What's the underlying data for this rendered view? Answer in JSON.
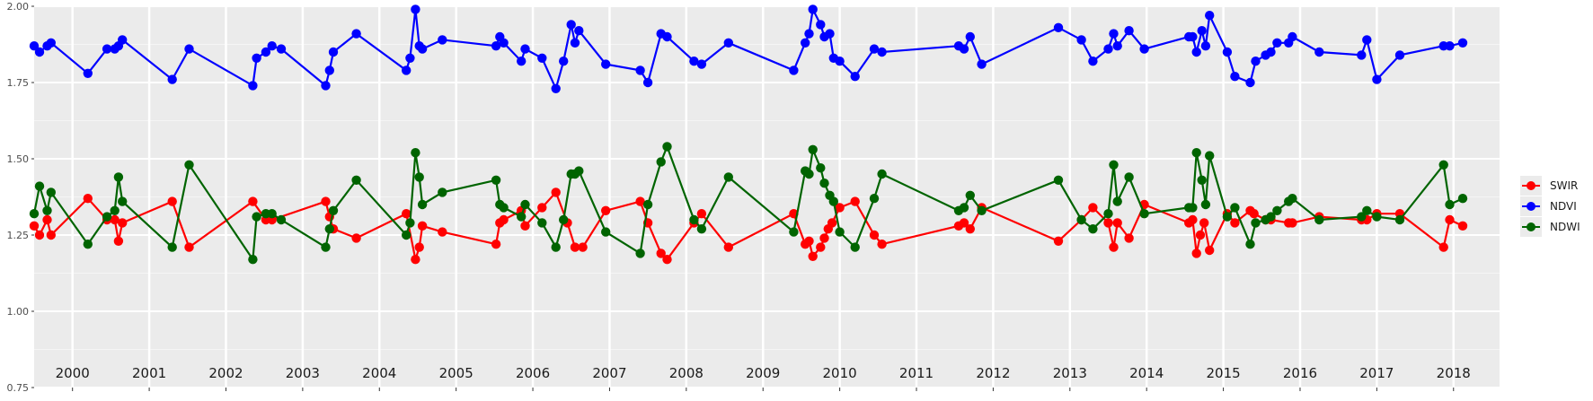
{
  "chart_data": {
    "type": "line",
    "title": "",
    "xlabel": "",
    "ylabel": "",
    "ylim": [
      0.75,
      2.0
    ],
    "xlim": [
      1999.5,
      2018.6
    ],
    "grid": true,
    "legend_position": "right",
    "y_ticks": [
      "0.75",
      "1.00",
      "1.25",
      "1.50",
      "1.75",
      "2.00"
    ],
    "year_labels": [
      "2000",
      "2001",
      "2002",
      "2003",
      "2004",
      "2005",
      "2006",
      "2007",
      "2008",
      "2009",
      "2010",
      "2011",
      "2012",
      "2013",
      "2014",
      "2015",
      "2016",
      "2017",
      "2018"
    ],
    "legend": [
      {
        "name": "SWIR",
        "color": "#ff0000"
      },
      {
        "name": "NDVI",
        "color": "#0000ff"
      },
      {
        "name": "NDWI",
        "color": "#006400"
      }
    ],
    "series": [
      {
        "name": "SWIR",
        "color": "#ff0000",
        "points": [
          [
            1999.5,
            1.28
          ],
          [
            1999.57,
            1.25
          ],
          [
            1999.67,
            1.3
          ],
          [
            1999.72,
            1.25
          ],
          [
            2000.2,
            1.37
          ],
          [
            2000.45,
            1.3
          ],
          [
            2000.55,
            1.3
          ],
          [
            2000.6,
            1.23
          ],
          [
            2000.65,
            1.29
          ],
          [
            2001.3,
            1.36
          ],
          [
            2001.52,
            1.21
          ],
          [
            2002.35,
            1.36
          ],
          [
            2002.52,
            1.3
          ],
          [
            2002.6,
            1.3
          ],
          [
            2003.3,
            1.36
          ],
          [
            2003.35,
            1.31
          ],
          [
            2003.4,
            1.27
          ],
          [
            2003.7,
            1.24
          ],
          [
            2004.35,
            1.32
          ],
          [
            2004.47,
            1.17
          ],
          [
            2004.52,
            1.21
          ],
          [
            2004.56,
            1.28
          ],
          [
            2004.82,
            1.26
          ],
          [
            2005.52,
            1.22
          ],
          [
            2005.57,
            1.29
          ],
          [
            2005.62,
            1.3
          ],
          [
            2005.85,
            1.33
          ],
          [
            2005.9,
            1.28
          ],
          [
            2006.12,
            1.34
          ],
          [
            2006.3,
            1.39
          ],
          [
            2006.45,
            1.29
          ],
          [
            2006.55,
            1.21
          ],
          [
            2006.65,
            1.21
          ],
          [
            2006.95,
            1.33
          ],
          [
            2007.4,
            1.36
          ],
          [
            2007.5,
            1.29
          ],
          [
            2007.67,
            1.19
          ],
          [
            2007.75,
            1.17
          ],
          [
            2008.1,
            1.29
          ],
          [
            2008.2,
            1.32
          ],
          [
            2008.55,
            1.21
          ],
          [
            2009.4,
            1.32
          ],
          [
            2009.55,
            1.22
          ],
          [
            2009.6,
            1.23
          ],
          [
            2009.65,
            1.18
          ],
          [
            2009.75,
            1.21
          ],
          [
            2009.8,
            1.24
          ],
          [
            2009.85,
            1.27
          ],
          [
            2009.9,
            1.29
          ],
          [
            2010.0,
            1.34
          ],
          [
            2010.2,
            1.36
          ],
          [
            2010.45,
            1.25
          ],
          [
            2010.55,
            1.22
          ],
          [
            2011.55,
            1.28
          ],
          [
            2011.62,
            1.29
          ],
          [
            2011.7,
            1.27
          ],
          [
            2011.85,
            1.34
          ],
          [
            2012.85,
            1.23
          ],
          [
            2013.15,
            1.3
          ],
          [
            2013.3,
            1.34
          ],
          [
            2013.5,
            1.29
          ],
          [
            2013.57,
            1.21
          ],
          [
            2013.62,
            1.29
          ],
          [
            2013.77,
            1.24
          ],
          [
            2013.97,
            1.35
          ],
          [
            2014.55,
            1.29
          ],
          [
            2014.6,
            1.3
          ],
          [
            2014.65,
            1.19
          ],
          [
            2014.7,
            1.25
          ],
          [
            2014.75,
            1.29
          ],
          [
            2014.82,
            1.2
          ],
          [
            2015.05,
            1.32
          ],
          [
            2015.15,
            1.29
          ],
          [
            2015.35,
            1.33
          ],
          [
            2015.4,
            1.32
          ],
          [
            2015.55,
            1.3
          ],
          [
            2015.62,
            1.3
          ],
          [
            2015.85,
            1.29
          ],
          [
            2015.9,
            1.29
          ],
          [
            2016.25,
            1.31
          ],
          [
            2016.8,
            1.3
          ],
          [
            2016.87,
            1.3
          ],
          [
            2017.0,
            1.32
          ],
          [
            2017.3,
            1.32
          ],
          [
            2017.87,
            1.21
          ],
          [
            2017.95,
            1.3
          ],
          [
            2018.12,
            1.28
          ]
        ]
      },
      {
        "name": "NDVI",
        "color": "#0000ff",
        "points": [
          [
            1999.5,
            1.87
          ],
          [
            1999.57,
            1.85
          ],
          [
            1999.67,
            1.87
          ],
          [
            1999.72,
            1.88
          ],
          [
            2000.2,
            1.78
          ],
          [
            2000.45,
            1.86
          ],
          [
            2000.55,
            1.86
          ],
          [
            2000.6,
            1.87
          ],
          [
            2000.65,
            1.89
          ],
          [
            2001.3,
            1.76
          ],
          [
            2001.52,
            1.86
          ],
          [
            2002.35,
            1.74
          ],
          [
            2002.4,
            1.83
          ],
          [
            2002.52,
            1.85
          ],
          [
            2002.6,
            1.87
          ],
          [
            2002.72,
            1.86
          ],
          [
            2003.3,
            1.74
          ],
          [
            2003.35,
            1.79
          ],
          [
            2003.4,
            1.85
          ],
          [
            2003.7,
            1.91
          ],
          [
            2004.35,
            1.79
          ],
          [
            2004.4,
            1.83
          ],
          [
            2004.47,
            1.99
          ],
          [
            2004.52,
            1.87
          ],
          [
            2004.56,
            1.86
          ],
          [
            2004.82,
            1.89
          ],
          [
            2005.52,
            1.87
          ],
          [
            2005.57,
            1.9
          ],
          [
            2005.62,
            1.88
          ],
          [
            2005.85,
            1.82
          ],
          [
            2005.9,
            1.86
          ],
          [
            2006.12,
            1.83
          ],
          [
            2006.3,
            1.73
          ],
          [
            2006.4,
            1.82
          ],
          [
            2006.5,
            1.94
          ],
          [
            2006.55,
            1.88
          ],
          [
            2006.6,
            1.92
          ],
          [
            2006.95,
            1.81
          ],
          [
            2007.4,
            1.79
          ],
          [
            2007.5,
            1.75
          ],
          [
            2007.67,
            1.91
          ],
          [
            2007.75,
            1.9
          ],
          [
            2008.1,
            1.82
          ],
          [
            2008.2,
            1.81
          ],
          [
            2008.55,
            1.88
          ],
          [
            2009.4,
            1.79
          ],
          [
            2009.55,
            1.88
          ],
          [
            2009.6,
            1.91
          ],
          [
            2009.65,
            1.99
          ],
          [
            2009.75,
            1.94
          ],
          [
            2009.8,
            1.9
          ],
          [
            2009.87,
            1.91
          ],
          [
            2009.92,
            1.83
          ],
          [
            2010.0,
            1.82
          ],
          [
            2010.2,
            1.77
          ],
          [
            2010.45,
            1.86
          ],
          [
            2010.55,
            1.85
          ],
          [
            2011.55,
            1.87
          ],
          [
            2011.62,
            1.86
          ],
          [
            2011.7,
            1.9
          ],
          [
            2011.85,
            1.81
          ],
          [
            2012.85,
            1.93
          ],
          [
            2013.15,
            1.89
          ],
          [
            2013.3,
            1.82
          ],
          [
            2013.5,
            1.86
          ],
          [
            2013.57,
            1.91
          ],
          [
            2013.62,
            1.87
          ],
          [
            2013.77,
            1.92
          ],
          [
            2013.97,
            1.86
          ],
          [
            2014.55,
            1.9
          ],
          [
            2014.6,
            1.9
          ],
          [
            2014.65,
            1.85
          ],
          [
            2014.72,
            1.92
          ],
          [
            2014.77,
            1.87
          ],
          [
            2014.82,
            1.97
          ],
          [
            2015.05,
            1.85
          ],
          [
            2015.15,
            1.77
          ],
          [
            2015.35,
            1.75
          ],
          [
            2015.42,
            1.82
          ],
          [
            2015.55,
            1.84
          ],
          [
            2015.62,
            1.85
          ],
          [
            2015.7,
            1.88
          ],
          [
            2015.85,
            1.88
          ],
          [
            2015.9,
            1.9
          ],
          [
            2016.25,
            1.85
          ],
          [
            2016.8,
            1.84
          ],
          [
            2016.87,
            1.89
          ],
          [
            2017.0,
            1.76
          ],
          [
            2017.3,
            1.84
          ],
          [
            2017.87,
            1.87
          ],
          [
            2017.95,
            1.87
          ],
          [
            2018.12,
            1.88
          ]
        ]
      },
      {
        "name": "NDWI",
        "color": "#006400",
        "points": [
          [
            1999.5,
            1.32
          ],
          [
            1999.57,
            1.41
          ],
          [
            1999.67,
            1.33
          ],
          [
            1999.72,
            1.39
          ],
          [
            2000.2,
            1.22
          ],
          [
            2000.45,
            1.31
          ],
          [
            2000.55,
            1.33
          ],
          [
            2000.6,
            1.44
          ],
          [
            2000.65,
            1.36
          ],
          [
            2001.3,
            1.21
          ],
          [
            2001.52,
            1.48
          ],
          [
            2002.35,
            1.17
          ],
          [
            2002.4,
            1.31
          ],
          [
            2002.52,
            1.32
          ],
          [
            2002.6,
            1.32
          ],
          [
            2002.72,
            1.3
          ],
          [
            2003.3,
            1.21
          ],
          [
            2003.35,
            1.27
          ],
          [
            2003.4,
            1.33
          ],
          [
            2003.7,
            1.43
          ],
          [
            2004.35,
            1.25
          ],
          [
            2004.4,
            1.29
          ],
          [
            2004.47,
            1.52
          ],
          [
            2004.52,
            1.44
          ],
          [
            2004.56,
            1.35
          ],
          [
            2004.82,
            1.39
          ],
          [
            2005.52,
            1.43
          ],
          [
            2005.57,
            1.35
          ],
          [
            2005.62,
            1.34
          ],
          [
            2005.85,
            1.31
          ],
          [
            2005.9,
            1.35
          ],
          [
            2006.12,
            1.29
          ],
          [
            2006.3,
            1.21
          ],
          [
            2006.4,
            1.3
          ],
          [
            2006.5,
            1.45
          ],
          [
            2006.55,
            1.45
          ],
          [
            2006.6,
            1.46
          ],
          [
            2006.95,
            1.26
          ],
          [
            2007.4,
            1.19
          ],
          [
            2007.5,
            1.35
          ],
          [
            2007.67,
            1.49
          ],
          [
            2007.75,
            1.54
          ],
          [
            2008.1,
            1.3
          ],
          [
            2008.2,
            1.27
          ],
          [
            2008.55,
            1.44
          ],
          [
            2009.4,
            1.26
          ],
          [
            2009.55,
            1.46
          ],
          [
            2009.6,
            1.45
          ],
          [
            2009.65,
            1.53
          ],
          [
            2009.75,
            1.47
          ],
          [
            2009.8,
            1.42
          ],
          [
            2009.87,
            1.38
          ],
          [
            2009.92,
            1.36
          ],
          [
            2010.0,
            1.26
          ],
          [
            2010.2,
            1.21
          ],
          [
            2010.45,
            1.37
          ],
          [
            2010.55,
            1.45
          ],
          [
            2011.55,
            1.33
          ],
          [
            2011.62,
            1.34
          ],
          [
            2011.7,
            1.38
          ],
          [
            2011.85,
            1.33
          ],
          [
            2012.85,
            1.43
          ],
          [
            2013.15,
            1.3
          ],
          [
            2013.3,
            1.27
          ],
          [
            2013.5,
            1.32
          ],
          [
            2013.57,
            1.48
          ],
          [
            2013.62,
            1.36
          ],
          [
            2013.77,
            1.44
          ],
          [
            2013.97,
            1.32
          ],
          [
            2014.55,
            1.34
          ],
          [
            2014.6,
            1.34
          ],
          [
            2014.65,
            1.52
          ],
          [
            2014.72,
            1.43
          ],
          [
            2014.77,
            1.35
          ],
          [
            2014.82,
            1.51
          ],
          [
            2015.05,
            1.31
          ],
          [
            2015.15,
            1.34
          ],
          [
            2015.35,
            1.22
          ],
          [
            2015.42,
            1.29
          ],
          [
            2015.55,
            1.3
          ],
          [
            2015.62,
            1.31
          ],
          [
            2015.7,
            1.33
          ],
          [
            2015.85,
            1.36
          ],
          [
            2015.9,
            1.37
          ],
          [
            2016.25,
            1.3
          ],
          [
            2016.8,
            1.31
          ],
          [
            2016.87,
            1.33
          ],
          [
            2017.0,
            1.31
          ],
          [
            2017.3,
            1.3
          ],
          [
            2017.87,
            1.48
          ],
          [
            2017.95,
            1.35
          ],
          [
            2018.12,
            1.37
          ]
        ]
      }
    ]
  }
}
